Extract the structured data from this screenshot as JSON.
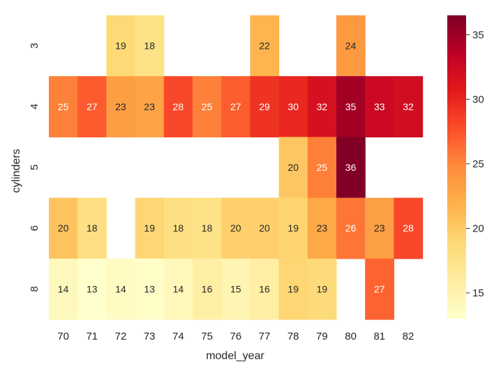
{
  "chart_data": {
    "type": "heatmap",
    "title": "",
    "xlabel": "model_year",
    "ylabel": "cylinders",
    "x_categories": [
      "70",
      "71",
      "72",
      "73",
      "74",
      "75",
      "76",
      "77",
      "78",
      "79",
      "80",
      "81",
      "82"
    ],
    "y_categories": [
      "3",
      "4",
      "5",
      "6",
      "8"
    ],
    "values": [
      [
        null,
        null,
        19,
        18,
        null,
        null,
        null,
        22,
        null,
        null,
        24,
        null,
        null
      ],
      [
        25,
        27,
        23,
        23,
        28,
        25,
        27,
        29,
        30,
        32,
        35,
        33,
        32
      ],
      [
        null,
        null,
        null,
        null,
        null,
        null,
        null,
        null,
        20,
        25,
        36,
        null,
        null
      ],
      [
        20,
        18,
        null,
        19,
        18,
        18,
        20,
        20,
        19,
        23,
        26,
        23,
        28
      ],
      [
        14,
        13,
        14,
        13,
        14,
        16,
        15,
        16,
        19,
        19,
        null,
        27,
        null
      ]
    ],
    "color_values": [
      [
        null,
        null,
        18.8,
        17.6,
        null,
        null,
        null,
        21.6,
        null,
        null,
        23.8,
        null,
        null
      ],
      [
        25.3,
        27.1,
        23.4,
        22.9,
        28.0,
        25.3,
        27.0,
        29.2,
        29.9,
        31.6,
        34.8,
        32.5,
        32.1
      ],
      [
        null,
        null,
        null,
        null,
        null,
        null,
        null,
        null,
        20.3,
        25.4,
        36.4,
        null,
        null
      ],
      [
        20.5,
        18.0,
        null,
        19.0,
        18.0,
        17.6,
        19.6,
        19.6,
        19.2,
        22.6,
        25.8,
        23.3,
        28.0
      ],
      [
        14.1,
        12.9,
        13.6,
        13.2,
        14.2,
        15.6,
        14.7,
        15.7,
        19.0,
        18.6,
        null,
        26.7,
        null
      ]
    ],
    "colorbar": {
      "min": 13,
      "max": 36.5,
      "ticks": [
        15,
        20,
        25,
        30,
        35
      ],
      "colormap": "YlOrRd"
    }
  }
}
